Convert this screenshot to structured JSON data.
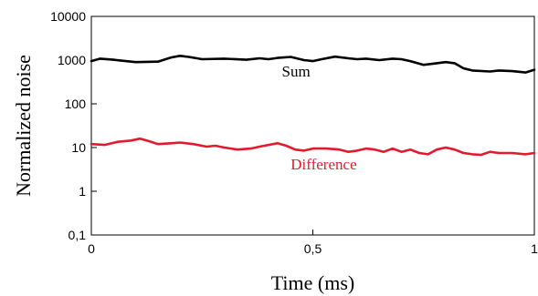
{
  "chart_data": {
    "type": "line",
    "title": "",
    "xlabel": "Time (ms)",
    "ylabel": "Normalized noise",
    "xlim": [
      0,
      1
    ],
    "ylim": [
      0.1,
      10000
    ],
    "yscale": "log",
    "x_ticks": [
      0,
      0.5,
      1
    ],
    "x_tick_labels": [
      "0",
      "0,5",
      "1"
    ],
    "y_ticks": [
      0.1,
      1,
      10,
      100,
      1000,
      10000
    ],
    "y_tick_labels": [
      "0,1",
      "1",
      "10",
      "100",
      "1000",
      "10000"
    ],
    "grid": false,
    "legend": "none",
    "series": [
      {
        "name": "Sum",
        "color": "#000000",
        "x": [
          0,
          0.02,
          0.05,
          0.1,
          0.15,
          0.18,
          0.2,
          0.22,
          0.25,
          0.3,
          0.35,
          0.38,
          0.4,
          0.42,
          0.45,
          0.48,
          0.5,
          0.52,
          0.55,
          0.58,
          0.6,
          0.62,
          0.65,
          0.68,
          0.7,
          0.72,
          0.75,
          0.78,
          0.8,
          0.82,
          0.84,
          0.86,
          0.9,
          0.92,
          0.95,
          0.98,
          1
        ],
        "values": [
          950,
          1080,
          1020,
          900,
          920,
          1150,
          1250,
          1180,
          1050,
          1080,
          1020,
          1100,
          1050,
          1120,
          1180,
          1000,
          950,
          1050,
          1200,
          1100,
          1050,
          1080,
          1000,
          1080,
          1050,
          950,
          780,
          850,
          900,
          850,
          650,
          580,
          550,
          580,
          560,
          520,
          600
        ]
      },
      {
        "name": "Difference",
        "color": "#e21a2d",
        "x": [
          0,
          0.03,
          0.06,
          0.09,
          0.11,
          0.13,
          0.15,
          0.18,
          0.2,
          0.23,
          0.26,
          0.28,
          0.3,
          0.33,
          0.36,
          0.38,
          0.4,
          0.42,
          0.44,
          0.46,
          0.48,
          0.5,
          0.53,
          0.56,
          0.58,
          0.6,
          0.62,
          0.64,
          0.66,
          0.68,
          0.7,
          0.72,
          0.74,
          0.76,
          0.78,
          0.8,
          0.82,
          0.84,
          0.86,
          0.88,
          0.9,
          0.92,
          0.95,
          0.98,
          1
        ],
        "values": [
          12,
          11.5,
          13.5,
          14.5,
          16,
          14,
          12,
          12.5,
          13,
          12,
          10.5,
          11,
          10,
          9,
          9.5,
          10.5,
          11.5,
          12.5,
          11,
          9,
          8.5,
          9.5,
          9.5,
          9,
          8,
          8.5,
          9.5,
          9,
          8,
          9.5,
          8,
          9,
          7.5,
          7,
          9,
          10,
          9,
          7.5,
          7,
          6.8,
          8,
          7.5,
          7.5,
          7,
          7.5
        ]
      }
    ]
  }
}
